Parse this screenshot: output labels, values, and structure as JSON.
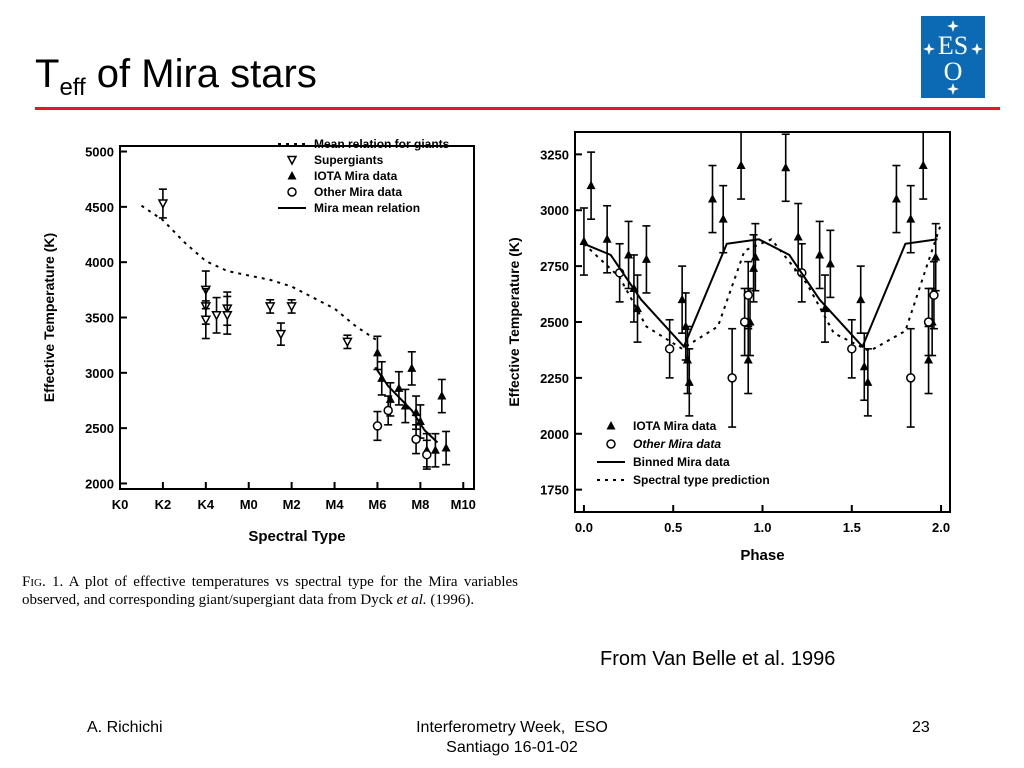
{
  "slide": {
    "title_main": "T",
    "title_sub": "eff",
    "title_rest": " of Mira stars",
    "attribution": "From Van Belle et al. 1996",
    "footer_left": "A. Richichi",
    "footer_center_line1": "Interferometry Week,  ESO",
    "footer_center_line2": "Santiago 16-01-02",
    "page_number": "23",
    "accent_color": "#e8142b"
  },
  "logo": {
    "text": "ESO",
    "icon": "eso-logo-icon",
    "color": "#0b6ab3"
  },
  "caption": {
    "fig_label": "Fig. 1.",
    "text": " A plot of effective temperatures vs spectral type for the Mira variables observed, and corresponding giant/supergiant data from Dyck ",
    "italic": "et al.",
    "tail": " (1996)."
  },
  "chart_data": [
    {
      "type": "scatter",
      "xlabel": "Spectral Type",
      "ylabel": "Effective Temperature (K)",
      "x_categories": [
        "K0",
        "K2",
        "K4",
        "M0",
        "M2",
        "M4",
        "M6",
        "M8",
        "M10"
      ],
      "x_tick_values": [
        0,
        2,
        4,
        6,
        8,
        10,
        12,
        14,
        16
      ],
      "xlim": [
        0,
        16.5
      ],
      "ylim": [
        1950,
        5050
      ],
      "y_ticks": [
        2000,
        2500,
        3000,
        3500,
        4000,
        4500,
        5000
      ],
      "legend_position": "top-right",
      "legend": [
        {
          "label": "Mean relation for giants",
          "style": "dotted-line"
        },
        {
          "label": "Supergiants",
          "style": "down-triangle"
        },
        {
          "label": "IOTA Mira data",
          "style": "filled-up-triangle"
        },
        {
          "label": "Other Mira data",
          "style": "open-circle"
        },
        {
          "label": "Mira mean relation",
          "style": "solid-line"
        }
      ],
      "series": [
        {
          "name": "Mean relation for giants",
          "style": "dotted-line",
          "points": [
            [
              1.0,
              4510
            ],
            [
              2.0,
              4380
            ],
            [
              3.0,
              4180
            ],
            [
              4.0,
              4010
            ],
            [
              5.0,
              3920
            ],
            [
              6.0,
              3880
            ],
            [
              7.0,
              3840
            ],
            [
              8.0,
              3780
            ],
            [
              9.0,
              3680
            ],
            [
              10.0,
              3580
            ],
            [
              11.0,
              3420
            ],
            [
              12.0,
              3290
            ]
          ]
        },
        {
          "name": "Supergiants",
          "style": "down-triangle",
          "points": [
            [
              2.0,
              4530,
              130
            ],
            [
              4.0,
              3750,
              170
            ],
            [
              4.0,
              3600,
              160
            ],
            [
              4.0,
              3480,
              170
            ],
            [
              4.5,
              3520,
              160
            ],
            [
              5.0,
              3580,
              150
            ],
            [
              5.0,
              3520,
              170
            ],
            [
              7.0,
              3600,
              60
            ],
            [
              7.5,
              3350,
              100
            ],
            [
              8.0,
              3600,
              60
            ],
            [
              10.6,
              3280,
              60
            ]
          ]
        },
        {
          "name": "IOTA Mira data",
          "style": "filled-up-triangle",
          "points": [
            [
              12.0,
              3180,
              150
            ],
            [
              12.2,
              2950,
              150
            ],
            [
              12.6,
              2760,
              150
            ],
            [
              13.0,
              2860,
              150
            ],
            [
              13.3,
              2700,
              150
            ],
            [
              13.6,
              3040,
              150
            ],
            [
              13.8,
              2640,
              150
            ],
            [
              14.0,
              2560,
              150
            ],
            [
              14.3,
              2300,
              150
            ],
            [
              14.7,
              2300,
              150
            ],
            [
              15.0,
              2790,
              150
            ],
            [
              15.2,
              2320,
              150
            ]
          ]
        },
        {
          "name": "Other Mira data",
          "style": "open-circle",
          "points": [
            [
              12.0,
              2520,
              130
            ],
            [
              12.5,
              2660,
              130
            ],
            [
              13.8,
              2400,
              130
            ],
            [
              14.3,
              2260,
              130
            ]
          ]
        },
        {
          "name": "Mira mean relation",
          "style": "solid-line",
          "points": [
            [
              11.9,
              3050
            ],
            [
              12.5,
              2880
            ],
            [
              13.0,
              2780
            ],
            [
              13.6,
              2660
            ],
            [
              14.2,
              2480
            ],
            [
              14.8,
              2370
            ]
          ]
        }
      ]
    },
    {
      "type": "scatter",
      "xlabel": "Phase",
      "ylabel": "Effective Temperature (K)",
      "xlim": [
        -0.05,
        2.05
      ],
      "x_ticks": [
        0.0,
        0.5,
        1.0,
        1.5,
        2.0
      ],
      "x_tick_labels": [
        "0.0",
        "0.5",
        "1.0",
        "1.5",
        "2.0"
      ],
      "ylim": [
        1650,
        3350
      ],
      "y_ticks": [
        1750,
        2000,
        2250,
        2500,
        2750,
        3000,
        3250
      ],
      "legend_position": "bottom-left",
      "legend": [
        {
          "label": "IOTA Mira data",
          "style": "filled-up-triangle"
        },
        {
          "label": "Other Mira data",
          "style": "open-circle"
        },
        {
          "label": "Binned Mira data",
          "style": "solid-line"
        },
        {
          "label": "Spectral type prediction",
          "style": "dotted-line"
        }
      ],
      "series": [
        {
          "name": "IOTA Mira data",
          "style": "filled-up-triangle",
          "points": [
            [
              0.0,
              2860,
              150
            ],
            [
              0.04,
              3110,
              150
            ],
            [
              0.13,
              2870,
              150
            ],
            [
              0.25,
              2800,
              150
            ],
            [
              0.28,
              2650,
              150
            ],
            [
              0.3,
              2560,
              150
            ],
            [
              0.35,
              2780,
              150
            ],
            [
              0.55,
              2600,
              150
            ],
            [
              0.57,
              2480,
              150
            ],
            [
              0.58,
              2330,
              150
            ],
            [
              0.59,
              2230,
              150
            ],
            [
              0.72,
              3050,
              150
            ],
            [
              0.78,
              2960,
              150
            ],
            [
              0.88,
              3200,
              150
            ],
            [
              0.92,
              2330,
              150
            ],
            [
              0.93,
              2500,
              150
            ],
            [
              0.95,
              2740,
              150
            ],
            [
              0.96,
              2790,
              150
            ],
            [
              1.13,
              3190,
              150
            ],
            [
              1.2,
              2880,
              150
            ],
            [
              1.32,
              2800,
              150
            ],
            [
              1.35,
              2560,
              150
            ],
            [
              1.38,
              2760,
              150
            ],
            [
              1.55,
              2600,
              150
            ],
            [
              1.57,
              2300,
              150
            ],
            [
              1.59,
              2230,
              150
            ],
            [
              1.75,
              3050,
              150
            ],
            [
              1.83,
              2960,
              150
            ],
            [
              1.9,
              3200,
              150
            ],
            [
              1.93,
              2330,
              150
            ],
            [
              1.95,
              2500,
              150
            ],
            [
              1.97,
              2790,
              150
            ]
          ]
        },
        {
          "name": "Other Mira data",
          "style": "open-circle",
          "points": [
            [
              0.2,
              2720,
              130
            ],
            [
              0.48,
              2380,
              130
            ],
            [
              0.83,
              2250,
              220
            ],
            [
              0.9,
              2500,
              150
            ],
            [
              0.92,
              2620,
              150
            ],
            [
              1.22,
              2720,
              130
            ],
            [
              1.5,
              2380,
              130
            ],
            [
              1.83,
              2250,
              220
            ],
            [
              1.93,
              2500,
              150
            ],
            [
              1.96,
              2620,
              150
            ]
          ]
        },
        {
          "name": "Binned Mira data",
          "style": "solid-line",
          "points": [
            [
              0.0,
              2850
            ],
            [
              0.15,
              2800
            ],
            [
              0.32,
              2600
            ],
            [
              0.56,
              2390
            ],
            [
              0.8,
              2850
            ],
            [
              0.98,
              2870
            ],
            [
              1.15,
              2800
            ],
            [
              1.32,
              2600
            ],
            [
              1.56,
              2390
            ],
            [
              1.8,
              2850
            ],
            [
              1.98,
              2870
            ]
          ]
        },
        {
          "name": "Spectral type prediction",
          "style": "dotted-line",
          "points": [
            [
              0.0,
              2850
            ],
            [
              0.2,
              2700
            ],
            [
              0.35,
              2480
            ],
            [
              0.55,
              2380
            ],
            [
              0.75,
              2480
            ],
            [
              0.9,
              2820
            ],
            [
              1.05,
              2870
            ],
            [
              1.25,
              2670
            ],
            [
              1.4,
              2450
            ],
            [
              1.6,
              2370
            ],
            [
              1.8,
              2460
            ],
            [
              1.92,
              2750
            ],
            [
              2.0,
              2940
            ]
          ]
        }
      ]
    }
  ]
}
